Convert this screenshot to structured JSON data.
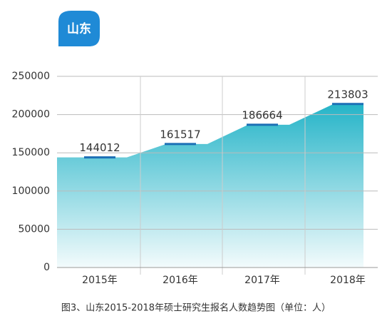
{
  "chart_data": {
    "type": "area",
    "badge": "山东",
    "caption": "图3、山东2015-2018年硕士研究生报名人数趋势图（单位：人）",
    "categories": [
      "2015年",
      "2016年",
      "2017年",
      "2018年"
    ],
    "values": [
      144012,
      161517,
      186664,
      213803
    ],
    "color": "#2bb8ca",
    "marker_color": "#1b6fb5",
    "ylim": [
      0,
      250000
    ],
    "yticks": [
      0,
      50000,
      100000,
      150000,
      200000,
      250000
    ],
    "grid": true
  }
}
